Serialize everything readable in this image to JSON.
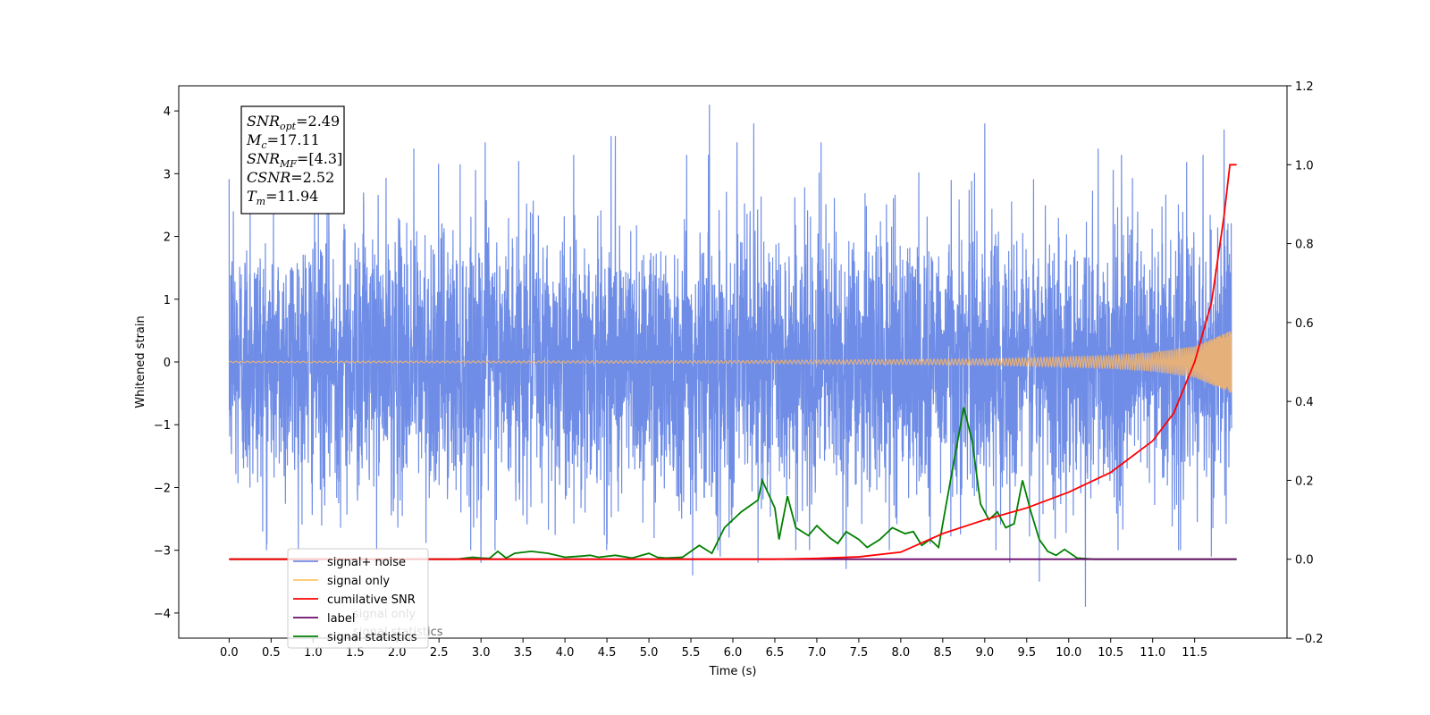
{
  "chart_data": {
    "type": "line",
    "xlabel": "Time (s)",
    "ylabel": "Whitened strain",
    "xlim": [
      -0.6,
      12.6
    ],
    "ylim": [
      -4.4,
      4.4
    ],
    "y2lim": [
      -0.2,
      1.2
    ],
    "x_ticks": [
      0.0,
      0.5,
      1.0,
      1.5,
      2.0,
      2.5,
      3.0,
      3.5,
      4.0,
      4.5,
      5.0,
      5.5,
      6.0,
      6.5,
      7.0,
      7.5,
      8.0,
      8.5,
      9.0,
      9.5,
      10.0,
      10.5,
      11.0,
      11.5
    ],
    "x_tick_labels": [
      "0.0",
      "0.5",
      "1.0",
      "1.5",
      "2.0",
      "2.5",
      "3.0",
      "3.5",
      "4.0",
      "4.5",
      "5.0",
      "5.5",
      "6.0",
      "6.5",
      "7.0",
      "7.5",
      "8.0",
      "8.5",
      "9.0",
      "9.5",
      "10.0",
      "10.5",
      "11.0",
      "11.5"
    ],
    "y_ticks": [
      -4,
      -3,
      -2,
      -1,
      0,
      1,
      2,
      3,
      4
    ],
    "y_tick_labels": [
      "−4",
      "−3",
      "−2",
      "−1",
      "0",
      "1",
      "2",
      "3",
      "4"
    ],
    "y2_ticks": [
      -0.2,
      0.0,
      0.2,
      0.4,
      0.6,
      0.8,
      1.0,
      1.2
    ],
    "y2_tick_labels": [
      "−0.2",
      "0.0",
      "0.2",
      "0.4",
      "0.6",
      "0.8",
      "1.0",
      "1.2"
    ],
    "grid": false,
    "legend_position": "bottom-left",
    "series": [
      {
        "name": "signal+ noise",
        "color": "#6f8de6",
        "axis": "left",
        "description": "dense noisy trace, roughly within [-3, 3.5] with spikes up to ~4.1 and down to ~-3.9",
        "duration": [
          0.0,
          11.94
        ],
        "spikes": [
          [
            0.05,
            2.4
          ],
          [
            0.25,
            2.7
          ],
          [
            0.45,
            -2.9
          ],
          [
            1.6,
            2.7
          ],
          [
            2.2,
            3.4
          ],
          [
            3.05,
            3.5
          ],
          [
            3.0,
            -3.2
          ],
          [
            3.45,
            3.2
          ],
          [
            4.55,
            3.6
          ],
          [
            4.6,
            3.6
          ],
          [
            5.45,
            3.3
          ],
          [
            5.52,
            -3.4
          ],
          [
            5.72,
            4.1
          ],
          [
            5.85,
            -3.1
          ],
          [
            6.05,
            3.5
          ],
          [
            6.25,
            3.8
          ],
          [
            6.3,
            -3.2
          ],
          [
            7.05,
            3.5
          ],
          [
            7.35,
            -3.3
          ],
          [
            8.35,
            -2.9
          ],
          [
            8.6,
            2.9
          ],
          [
            9.0,
            3.8
          ],
          [
            9.3,
            -3.2
          ],
          [
            9.65,
            -3.5
          ],
          [
            10.2,
            -3.9
          ],
          [
            10.35,
            3.4
          ],
          [
            11.6,
            3.3
          ],
          [
            11.7,
            -3.1
          ],
          [
            11.85,
            3.7
          ]
        ]
      },
      {
        "name": "signal only",
        "color": "#e5b07a",
        "axis": "left",
        "description": "chirp signal near zero growing to amplitude ~0.5 at merger",
        "amplitude_points": [
          [
            0.0,
            0.01
          ],
          [
            6.0,
            0.02
          ],
          [
            9.0,
            0.05
          ],
          [
            10.5,
            0.1
          ],
          [
            11.0,
            0.15
          ],
          [
            11.5,
            0.25
          ],
          [
            11.8,
            0.42
          ],
          [
            11.94,
            0.5
          ]
        ]
      },
      {
        "name": "cumilative SNR",
        "color": "#ff0000",
        "axis": "right",
        "points": [
          [
            0.0,
            0.0
          ],
          [
            6.5,
            0.0
          ],
          [
            7.0,
            0.002
          ],
          [
            7.5,
            0.006
          ],
          [
            8.0,
            0.018
          ],
          [
            8.5,
            0.065
          ],
          [
            9.0,
            0.1
          ],
          [
            9.5,
            0.13
          ],
          [
            10.0,
            0.17
          ],
          [
            10.5,
            0.22
          ],
          [
            11.0,
            0.3
          ],
          [
            11.25,
            0.37
          ],
          [
            11.5,
            0.5
          ],
          [
            11.7,
            0.65
          ],
          [
            11.85,
            0.87
          ],
          [
            11.92,
            1.0
          ],
          [
            12.0,
            1.0
          ]
        ]
      },
      {
        "name": "label",
        "color": "#6a0a6a",
        "axis": "right",
        "points": [
          [
            0.0,
            0.0
          ],
          [
            12.0,
            0.0
          ]
        ]
      },
      {
        "name": "signal statistics",
        "color": "#008000",
        "axis": "right",
        "points": [
          [
            0.0,
            0.0
          ],
          [
            2.2,
            0.0
          ],
          [
            2.5,
            0.0
          ],
          [
            2.7,
            0.0
          ],
          [
            2.9,
            0.005
          ],
          [
            3.0,
            0.003
          ],
          [
            3.1,
            0.002
          ],
          [
            3.2,
            0.02
          ],
          [
            3.3,
            0.003
          ],
          [
            3.4,
            0.015
          ],
          [
            3.6,
            0.02
          ],
          [
            3.8,
            0.015
          ],
          [
            4.0,
            0.005
          ],
          [
            4.2,
            0.008
          ],
          [
            4.3,
            0.01
          ],
          [
            4.4,
            0.005
          ],
          [
            4.6,
            0.01
          ],
          [
            4.8,
            0.003
          ],
          [
            5.0,
            0.015
          ],
          [
            5.1,
            0.005
          ],
          [
            5.2,
            0.003
          ],
          [
            5.4,
            0.005
          ],
          [
            5.6,
            0.035
          ],
          [
            5.75,
            0.015
          ],
          [
            5.9,
            0.08
          ],
          [
            6.1,
            0.12
          ],
          [
            6.3,
            0.15
          ],
          [
            6.35,
            0.2
          ],
          [
            6.5,
            0.13
          ],
          [
            6.55,
            0.05
          ],
          [
            6.65,
            0.16
          ],
          [
            6.75,
            0.08
          ],
          [
            6.9,
            0.06
          ],
          [
            7.0,
            0.085
          ],
          [
            7.15,
            0.055
          ],
          [
            7.25,
            0.04
          ],
          [
            7.35,
            0.07
          ],
          [
            7.5,
            0.05
          ],
          [
            7.6,
            0.03
          ],
          [
            7.75,
            0.05
          ],
          [
            7.9,
            0.08
          ],
          [
            8.05,
            0.065
          ],
          [
            8.15,
            0.07
          ],
          [
            8.25,
            0.035
          ],
          [
            8.35,
            0.05
          ],
          [
            8.45,
            0.03
          ],
          [
            8.55,
            0.15
          ],
          [
            8.75,
            0.385
          ],
          [
            8.85,
            0.3
          ],
          [
            8.95,
            0.14
          ],
          [
            9.05,
            0.1
          ],
          [
            9.15,
            0.12
          ],
          [
            9.25,
            0.08
          ],
          [
            9.35,
            0.09
          ],
          [
            9.45,
            0.2
          ],
          [
            9.55,
            0.12
          ],
          [
            9.65,
            0.05
          ],
          [
            9.75,
            0.02
          ],
          [
            9.85,
            0.01
          ],
          [
            9.95,
            0.025
          ],
          [
            10.1,
            0.003
          ],
          [
            10.3,
            0.0
          ],
          [
            10.5,
            0.0
          ],
          [
            12.0,
            0.0
          ]
        ]
      }
    ],
    "legend_entries": [
      {
        "label": "signal+ noise",
        "color": "#6f8de6"
      },
      {
        "label": "signal only",
        "color": "#ffc56a"
      },
      {
        "label": "cumilative SNR",
        "color": "#ff0000"
      },
      {
        "label": "label",
        "color": "#6a0a6a"
      },
      {
        "label": "signal statistics",
        "color": "#008000"
      }
    ],
    "annotation_box": {
      "lines": [
        {
          "main": "SNR",
          "sub": "opt",
          "value": "=2.49"
        },
        {
          "main": "M",
          "sub": "c",
          "value": "=17.11"
        },
        {
          "main": "SNR",
          "sub": "MF",
          "value": "=[4.3]"
        },
        {
          "main": "CSNR",
          "sub": "",
          "value": "=2.52"
        },
        {
          "main": "T",
          "sub": "m",
          "value": "=11.94"
        }
      ]
    },
    "hidden_legend_text": [
      "signal only",
      "signal statistics"
    ]
  }
}
